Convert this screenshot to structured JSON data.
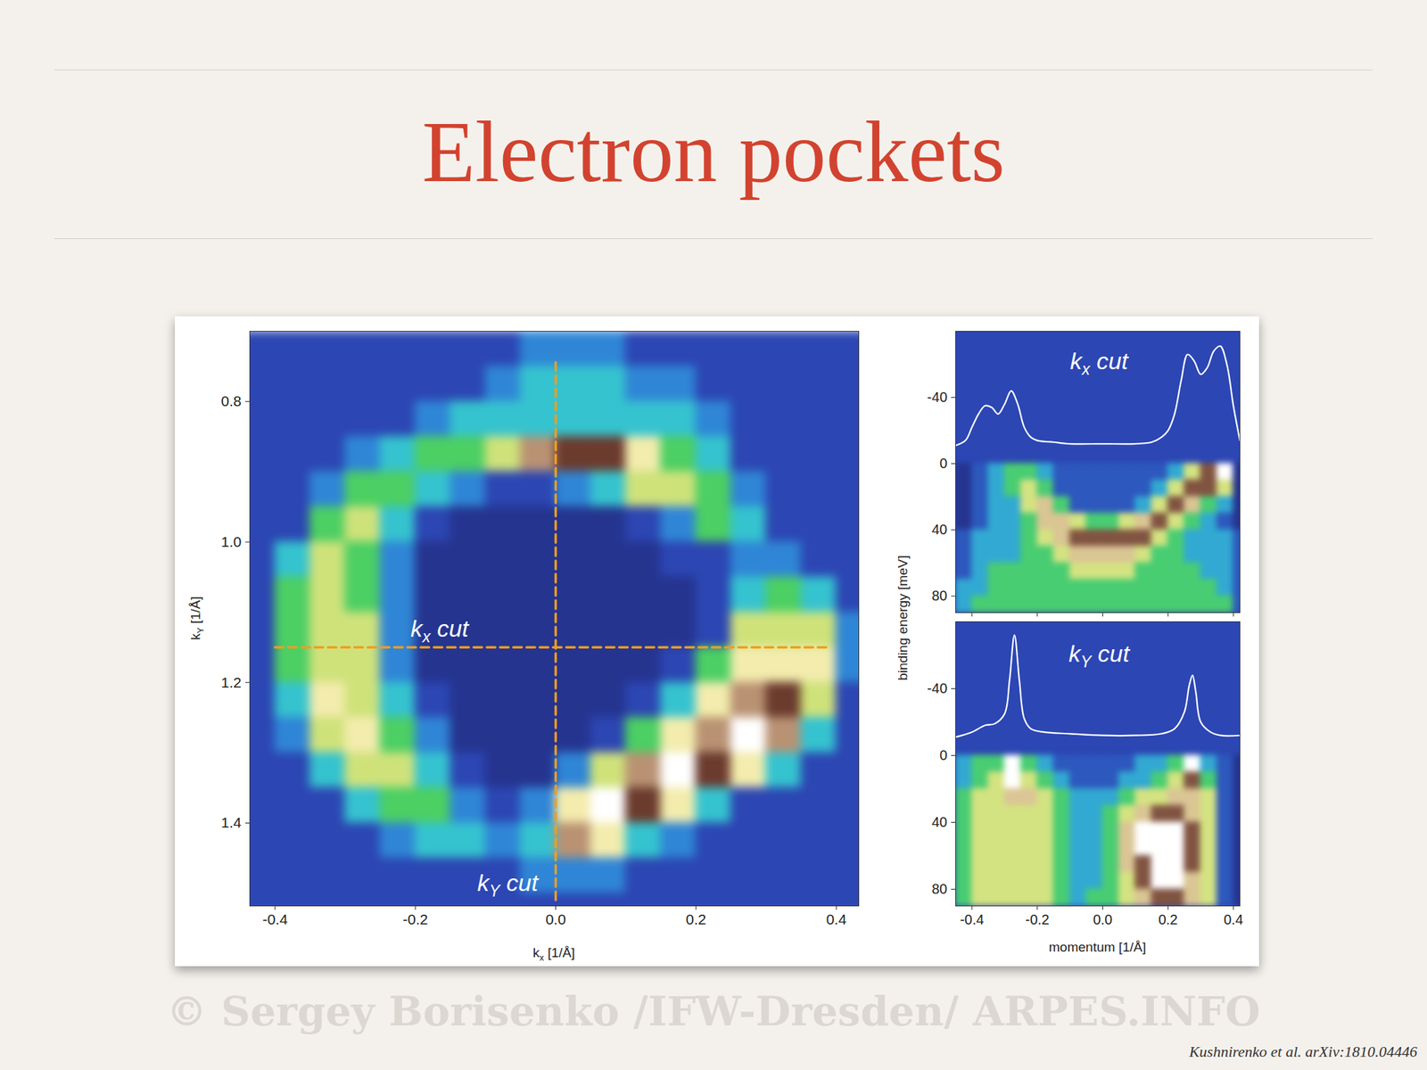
{
  "slide": {
    "title": "Electron pockets",
    "citation": "Kushnirenko et al. arXiv:1810.04446",
    "watermark": "© Sergey Borisenko /IFW-Dresden/ ARPES.INFO"
  },
  "chart_data": [
    {
      "type": "heatmap",
      "xlabel": "kx [1/Å]",
      "ylabel": "kY [1/Å]",
      "xlim": [
        -0.436,
        0.432
      ],
      "ylim": [
        1.518,
        0.7
      ],
      "xticks": [
        -0.4,
        -0.2,
        {
          "value": 0,
          "label": "0.0"
        },
        0.2,
        0.4
      ],
      "yticks": [
        0.8,
        {
          "value": 1,
          "label": "1.0"
        },
        1.2,
        1.4
      ],
      "x_edges": [
        -0.45,
        -0.4,
        -0.35,
        -0.3,
        -0.25,
        -0.2,
        -0.15,
        -0.1,
        -0.05,
        0,
        0.05,
        0.1,
        0.15,
        0.2,
        0.25,
        0.3,
        0.35,
        0.4,
        0.45
      ],
      "y_edges": [
        0.7,
        0.75,
        0.8,
        0.85,
        0.9,
        0.95,
        1.0,
        1.05,
        1.1,
        1.15,
        1.2,
        1.25,
        1.3,
        1.35,
        1.4,
        1.45,
        1.5,
        1.55
      ],
      "z": [
        [
          1,
          1,
          1,
          1,
          1,
          1,
          1,
          1,
          2,
          2,
          2,
          1,
          1,
          1,
          1,
          1,
          1,
          1
        ],
        [
          1,
          1,
          1,
          1,
          1,
          1,
          1,
          2,
          3,
          3,
          3,
          2,
          2,
          1,
          1,
          1,
          1,
          1
        ],
        [
          1,
          1,
          1,
          1,
          1,
          2,
          3,
          3,
          3,
          3,
          3,
          3,
          3,
          2,
          1,
          1,
          1,
          1
        ],
        [
          1,
          1,
          1,
          2,
          3,
          4,
          4,
          5,
          7,
          8,
          8,
          6,
          4,
          3,
          1,
          1,
          1,
          1
        ],
        [
          1,
          1,
          2,
          4,
          4,
          3,
          2,
          1,
          1,
          2,
          3,
          5,
          5,
          4,
          2,
          1,
          1,
          1
        ],
        [
          1,
          1,
          4,
          5,
          3,
          1,
          0,
          0,
          0,
          0,
          0,
          1,
          2,
          4,
          3,
          1,
          1,
          1
        ],
        [
          1,
          3,
          5,
          4,
          2,
          0,
          0,
          0,
          0,
          0,
          0,
          0,
          1,
          1,
          2,
          2,
          1,
          1
        ],
        [
          1,
          4,
          5,
          4,
          2,
          0,
          0,
          0,
          0,
          0,
          0,
          0,
          0,
          1,
          3,
          4,
          3,
          1
        ],
        [
          1,
          4,
          5,
          5,
          2,
          0,
          0,
          0,
          0,
          0,
          0,
          0,
          0,
          1,
          5,
          5,
          5,
          2
        ],
        [
          1,
          4,
          5,
          5,
          2,
          0,
          0,
          0,
          0,
          0,
          0,
          0,
          1,
          4,
          6,
          6,
          6,
          2
        ],
        [
          1,
          3,
          6,
          5,
          3,
          1,
          0,
          0,
          0,
          0,
          0,
          1,
          3,
          6,
          7,
          8,
          5,
          1
        ],
        [
          1,
          2,
          5,
          6,
          4,
          2,
          0,
          0,
          0,
          0,
          1,
          4,
          6,
          7,
          9,
          7,
          3,
          1
        ],
        [
          1,
          1,
          3,
          5,
          5,
          3,
          1,
          0,
          0,
          2,
          5,
          7,
          9,
          8,
          6,
          3,
          1,
          1
        ],
        [
          1,
          1,
          1,
          3,
          4,
          4,
          2,
          1,
          2,
          6,
          9,
          8,
          6,
          3,
          1,
          1,
          1,
          1
        ],
        [
          1,
          1,
          1,
          1,
          2,
          3,
          3,
          2,
          3,
          7,
          6,
          3,
          2,
          1,
          1,
          1,
          1,
          1
        ],
        [
          1,
          1,
          1,
          1,
          1,
          1,
          1,
          1,
          2,
          2,
          2,
          1,
          1,
          1,
          1,
          1,
          1,
          1
        ],
        [
          1,
          1,
          1,
          1,
          1,
          1,
          1,
          1,
          1,
          1,
          1,
          1,
          1,
          1,
          1,
          1,
          1,
          1
        ]
      ],
      "cut_lines": [
        {
          "x": [
            -0.4,
            0.39
          ],
          "y": [
            1.15,
            1.15
          ]
        },
        {
          "x": [
            0,
            0
          ],
          "y": [
            0.744,
            1.51
          ]
        }
      ],
      "annotations": [
        {
          "text": "kx cut",
          "x": -0.165,
          "y": 1.135
        },
        {
          "text": "kY cut",
          "x": -0.068,
          "y": 1.497
        }
      ]
    },
    {
      "type": "heatmap",
      "ylabel": "binding energy [meV]",
      "tick_labels": "y",
      "xlim": [
        -0.45,
        0.42
      ],
      "ylim": [
        90,
        -80
      ],
      "xticks": [
        -0.4,
        -0.2,
        {
          "value": 0,
          "label": "0.0"
        },
        0.2,
        0.4
      ],
      "yticks": [
        -40,
        0,
        40,
        80
      ],
      "x_edges": [
        -0.45,
        -0.4,
        -0.35,
        -0.3,
        -0.25,
        -0.2,
        -0.15,
        -0.1,
        -0.05,
        0,
        0.05,
        0.1,
        0.15,
        0.2,
        0.25,
        0.3,
        0.35,
        0.4,
        0.45
      ],
      "y_edges": [
        0,
        10,
        20,
        30,
        40,
        50,
        60,
        70,
        80,
        90
      ],
      "z": [
        [
          2,
          3,
          4,
          5,
          5,
          4,
          3,
          3,
          3,
          3,
          3,
          3,
          3,
          4,
          6,
          8,
          9,
          2
        ],
        [
          2,
          3,
          4,
          5,
          6,
          5,
          3,
          3,
          3,
          3,
          3,
          3,
          4,
          6,
          8,
          8,
          6,
          2
        ],
        [
          2,
          3,
          4,
          4,
          6,
          7,
          5,
          3,
          3,
          3,
          3,
          4,
          6,
          8,
          7,
          5,
          4,
          2
        ],
        [
          2,
          3,
          4,
          4,
          5,
          7,
          7,
          6,
          5,
          5,
          6,
          7,
          8,
          6,
          5,
          4,
          3,
          2
        ],
        [
          3,
          4,
          4,
          4,
          5,
          6,
          7,
          8,
          8,
          8,
          8,
          8,
          6,
          5,
          4,
          4,
          4,
          3
        ],
        [
          3,
          4,
          4,
          4,
          5,
          5,
          6,
          7,
          7,
          7,
          7,
          6,
          5,
          5,
          4,
          4,
          4,
          3
        ],
        [
          3,
          4,
          5,
          5,
          5,
          5,
          5,
          6,
          6,
          6,
          6,
          5,
          5,
          5,
          5,
          4,
          4,
          3
        ],
        [
          4,
          4,
          5,
          5,
          5,
          5,
          5,
          5,
          5,
          5,
          5,
          5,
          5,
          5,
          5,
          5,
          4,
          3
        ],
        [
          4,
          5,
          5,
          5,
          5,
          5,
          5,
          5,
          5,
          5,
          5,
          5,
          5,
          5,
          5,
          5,
          5,
          3
        ]
      ],
      "series": [
        {
          "type": "line",
          "color": "#ffffff",
          "x": [
            -0.45,
            -0.42,
            -0.4,
            -0.38,
            -0.36,
            -0.34,
            -0.32,
            -0.3,
            -0.28,
            -0.26,
            -0.24,
            -0.22,
            -0.2,
            -0.15,
            -0.1,
            0,
            0.1,
            0.15,
            0.18,
            0.2,
            0.22,
            0.24,
            0.26,
            0.28,
            0.3,
            0.32,
            0.34,
            0.36,
            0.38,
            0.4,
            0.42
          ],
          "values": [
            -11,
            -14,
            -22,
            -30,
            -35,
            -34,
            -30,
            -36,
            -44,
            -36,
            -22,
            -16,
            -14,
            -13,
            -12,
            -12,
            -12,
            -13,
            -16,
            -20,
            -30,
            -50,
            -66,
            -62,
            -54,
            -58,
            -68,
            -71,
            -60,
            -35,
            -14
          ]
        }
      ],
      "annotations": [
        {
          "text": "kx cut",
          "x": -0.01,
          "y": -57
        }
      ]
    },
    {
      "type": "heatmap",
      "xlabel": "momentum [1/Å]",
      "xlim": [
        -0.45,
        0.42
      ],
      "ylim": [
        90,
        -80
      ],
      "xticks": [
        -0.4,
        -0.2,
        {
          "value": 0,
          "label": "0.0"
        },
        0.2,
        0.4
      ],
      "yticks": [
        -40,
        0,
        40,
        80
      ],
      "x_edges": [
        -0.45,
        -0.4,
        -0.35,
        -0.3,
        -0.25,
        -0.2,
        -0.15,
        -0.1,
        -0.05,
        0,
        0.05,
        0.1,
        0.15,
        0.2,
        0.25,
        0.3,
        0.35,
        0.4,
        0.45
      ],
      "y_edges": [
        0,
        10,
        20,
        30,
        40,
        50,
        60,
        70,
        80,
        90
      ],
      "z": [
        [
          3,
          4,
          4,
          8,
          4,
          3,
          2,
          2,
          2,
          2,
          2,
          3,
          3,
          4,
          8,
          3,
          2,
          1
        ],
        [
          3,
          4,
          5,
          8,
          5,
          4,
          3,
          2,
          2,
          2,
          3,
          3,
          4,
          5,
          7,
          4,
          2,
          1
        ],
        [
          4,
          5,
          5,
          6,
          6,
          5,
          4,
          3,
          3,
          3,
          4,
          5,
          5,
          6,
          6,
          5,
          2,
          1
        ],
        [
          4,
          5,
          5,
          5,
          5,
          5,
          4,
          3,
          3,
          4,
          5,
          6,
          7,
          7,
          6,
          5,
          2,
          1
        ],
        [
          4,
          5,
          5,
          5,
          5,
          5,
          4,
          3,
          3,
          4,
          6,
          8,
          8,
          8,
          7,
          5,
          2,
          1
        ],
        [
          4,
          5,
          5,
          5,
          5,
          5,
          4,
          3,
          3,
          4,
          6,
          8,
          8,
          8,
          7,
          5,
          2,
          1
        ],
        [
          4,
          5,
          5,
          5,
          5,
          5,
          4,
          3,
          3,
          4,
          6,
          7,
          8,
          8,
          7,
          5,
          2,
          1
        ],
        [
          4,
          5,
          5,
          5,
          5,
          5,
          4,
          3,
          3,
          4,
          5,
          7,
          8,
          8,
          6,
          5,
          2,
          1
        ],
        [
          4,
          5,
          5,
          5,
          5,
          5,
          4,
          3,
          4,
          4,
          5,
          6,
          7,
          7,
          6,
          5,
          2,
          1
        ]
      ],
      "series": [
        {
          "type": "line",
          "color": "#ffffff",
          "x": [
            -0.45,
            -0.4,
            -0.36,
            -0.33,
            -0.3,
            -0.285,
            -0.27,
            -0.255,
            -0.24,
            -0.22,
            -0.18,
            -0.1,
            0,
            0.1,
            0.18,
            0.22,
            0.25,
            0.265,
            0.275,
            0.285,
            0.3,
            0.33,
            0.36,
            0.42
          ],
          "values": [
            -11,
            -14,
            -18,
            -19,
            -25,
            -45,
            -72,
            -45,
            -22,
            -16,
            -14,
            -13,
            -12,
            -12,
            -13,
            -16,
            -26,
            -42,
            -48,
            -38,
            -20,
            -14,
            -12,
            -12
          ]
        }
      ],
      "annotations": [
        {
          "text": "kY cut",
          "x": -0.01,
          "y": -56
        }
      ]
    }
  ]
}
